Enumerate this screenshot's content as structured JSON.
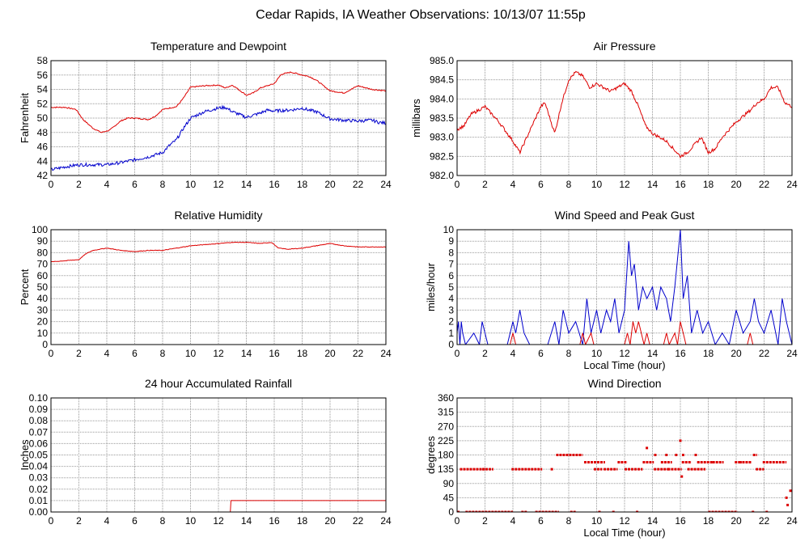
{
  "title": "Cedar Rapids, IA Weather Observations: 10/13/07 11:55p",
  "colors": {
    "red": "#dd0000",
    "blue": "#0000cc",
    "grid": "#999999"
  },
  "chart_data": [
    {
      "id": "temp",
      "type": "line",
      "title": "Temperature and Dewpoint",
      "xlabel": "",
      "ylabel": "Fahrenheit",
      "xlim": [
        0,
        24
      ],
      "xticks": [
        "0",
        "2",
        "4",
        "6",
        "8",
        "10",
        "12",
        "14",
        "16",
        "18",
        "20",
        "22",
        "24"
      ],
      "ylim": [
        42,
        58
      ],
      "yticks": [
        "42",
        "44",
        "46",
        "48",
        "50",
        "52",
        "54",
        "56",
        "58"
      ],
      "grid": true,
      "series": [
        {
          "color": "#dd0000",
          "noise": 0.08,
          "x": [
            0,
            1,
            1.8,
            2.3,
            3.0,
            3.6,
            4.2,
            5,
            5.5,
            6,
            7,
            7.5,
            8,
            9,
            9.5,
            10,
            11,
            12,
            12.5,
            13,
            14,
            14.5,
            15,
            15.5,
            16,
            16.5,
            17.2,
            18,
            18.5,
            19,
            20,
            21,
            22,
            23,
            24
          ],
          "y": [
            51.5,
            51.5,
            51.2,
            49.8,
            48.6,
            48.0,
            48.3,
            49.6,
            50.0,
            50.0,
            49.8,
            50.3,
            51.2,
            51.6,
            52.8,
            54.3,
            54.5,
            54.6,
            54.2,
            54.6,
            53.2,
            53.5,
            54.2,
            54.5,
            54.8,
            56.1,
            56.4,
            56.0,
            55.8,
            55.3,
            53.8,
            53.5,
            54.5,
            54.0,
            53.8
          ]
        },
        {
          "color": "#0000cc",
          "noise": 0.22,
          "x": [
            0,
            1,
            2,
            3,
            4,
            5,
            5.5,
            6,
            7,
            8,
            8.5,
            9,
            9.5,
            10,
            11,
            12,
            12.5,
            13,
            14,
            15,
            15.5,
            16,
            17,
            17.5,
            18,
            18.5,
            19,
            20,
            21,
            22,
            23,
            23.5,
            24
          ],
          "y": [
            42.8,
            43.2,
            43.5,
            43.5,
            43.5,
            43.8,
            44.0,
            44.2,
            44.6,
            45.2,
            46.2,
            47.0,
            48.6,
            50.0,
            50.9,
            51.4,
            51.5,
            50.9,
            50.1,
            50.7,
            51.1,
            51.0,
            51.1,
            51.2,
            51.4,
            51.1,
            50.9,
            49.9,
            49.7,
            49.6,
            49.7,
            49.4,
            49.3
          ]
        }
      ]
    },
    {
      "id": "pres",
      "type": "line",
      "title": "Air Pressure",
      "xlabel": "",
      "ylabel": "millibars",
      "xlim": [
        0,
        24
      ],
      "xticks": [
        "0",
        "2",
        "4",
        "6",
        "8",
        "10",
        "12",
        "14",
        "16",
        "18",
        "20",
        "22",
        "24"
      ],
      "ylim": [
        982.0,
        985.0
      ],
      "yticks": [
        "982.0",
        "982.5",
        "983.0",
        "983.5",
        "984.0",
        "984.5",
        "985.0"
      ],
      "grid": true,
      "series": [
        {
          "color": "#dd0000",
          "noise": 0.04,
          "x": [
            0,
            0.5,
            1,
            1.5,
            2,
            3,
            4,
            4.5,
            5,
            6,
            6.3,
            7,
            7.5,
            8,
            8.5,
            9,
            9.5,
            10,
            10.5,
            11,
            11.5,
            12,
            12.5,
            13,
            13.5,
            14,
            15,
            16,
            16.5,
            17,
            17.5,
            18,
            18.5,
            19,
            20,
            21,
            21.5,
            22,
            22.5,
            23,
            23.5,
            24
          ],
          "y": [
            983.2,
            983.3,
            983.6,
            983.7,
            983.8,
            983.4,
            982.9,
            982.6,
            983.0,
            983.8,
            983.9,
            983.1,
            983.9,
            984.5,
            984.7,
            984.6,
            984.3,
            984.4,
            984.3,
            984.2,
            984.3,
            984.4,
            984.2,
            983.8,
            983.3,
            983.1,
            982.9,
            982.5,
            982.6,
            982.8,
            983.0,
            982.6,
            982.7,
            983.0,
            983.4,
            983.7,
            983.9,
            984.0,
            984.3,
            984.3,
            983.9,
            983.8
          ]
        }
      ]
    },
    {
      "id": "rh",
      "type": "line",
      "title": "Relative Humidity",
      "xlabel": "",
      "ylabel": "Percent",
      "xlim": [
        0,
        24
      ],
      "xticks": [
        "0",
        "2",
        "4",
        "6",
        "8",
        "10",
        "12",
        "14",
        "16",
        "18",
        "20",
        "22",
        "24"
      ],
      "ylim": [
        0,
        100
      ],
      "yticks": [
        "0",
        "10",
        "20",
        "30",
        "40",
        "50",
        "60",
        "70",
        "80",
        "90",
        "100"
      ],
      "grid": true,
      "series": [
        {
          "color": "#dd0000",
          "noise": 0.25,
          "x": [
            0,
            1,
            2,
            2.5,
            3,
            4,
            5,
            6,
            7,
            8,
            9,
            10,
            11,
            12,
            13,
            14,
            15,
            15.8,
            16.3,
            17,
            18,
            19,
            20,
            21,
            22,
            23,
            24
          ],
          "y": [
            72,
            73,
            74,
            79,
            82,
            84,
            82,
            81,
            82,
            82,
            84,
            86,
            87,
            88,
            89,
            89,
            88,
            89,
            84,
            83,
            84,
            86,
            88,
            86,
            85,
            85,
            85
          ]
        }
      ]
    },
    {
      "id": "wind",
      "type": "line",
      "title": "Wind Speed and Peak Gust",
      "xlabel": "Local Time (hour)",
      "ylabel": "miles/hour",
      "xlim": [
        0,
        24
      ],
      "xticks": [
        "0",
        "2",
        "4",
        "6",
        "8",
        "10",
        "12",
        "14",
        "16",
        "18",
        "20",
        "22",
        "24"
      ],
      "ylim": [
        0,
        10
      ],
      "yticks": [
        "0",
        "1",
        "2",
        "3",
        "4",
        "5",
        "6",
        "7",
        "8",
        "9",
        "10"
      ],
      "grid": true,
      "series": [
        {
          "color": "#0000cc",
          "noise": 0,
          "x": [
            0,
            0.1,
            0.2,
            0.3,
            0.4,
            0.6,
            1.2,
            1.6,
            1.8,
            2.0,
            2.2,
            3.6,
            4.0,
            4.2,
            4.5,
            4.8,
            5.2,
            6.5,
            7.0,
            7.3,
            7.6,
            8.0,
            8.5,
            9.0,
            9.3,
            9.6,
            10.0,
            10.3,
            10.7,
            11.0,
            11.3,
            11.6,
            12.0,
            12.3,
            12.5,
            12.7,
            13.0,
            13.3,
            13.6,
            14.0,
            14.3,
            14.6,
            15.0,
            15.3,
            15.6,
            16.0,
            16.2,
            16.5,
            16.8,
            17.2,
            17.6,
            18.0,
            18.5,
            19.0,
            19.5,
            20.0,
            20.5,
            21.0,
            21.3,
            21.6,
            22.0,
            22.5,
            23.0,
            23.3,
            23.6,
            24.0
          ],
          "y": [
            1,
            2,
            0,
            2,
            1,
            0,
            1,
            0,
            2,
            1,
            0,
            0,
            2,
            1,
            3,
            1,
            0,
            0,
            2,
            0,
            3,
            1,
            2,
            0,
            4,
            1,
            3,
            1,
            3,
            2,
            4,
            1,
            3,
            9,
            6,
            7,
            3,
            5,
            4,
            5,
            3,
            5,
            4,
            2,
            5,
            10,
            4,
            6,
            1,
            3,
            1,
            2,
            0,
            1,
            0,
            3,
            1,
            2,
            4,
            2,
            1,
            3,
            0,
            4,
            2,
            0
          ]
        },
        {
          "color": "#dd0000",
          "noise": 0,
          "x": [
            0,
            3.8,
            4.0,
            4.2,
            8.8,
            9.0,
            9.2,
            9.6,
            9.8,
            10.0,
            12.0,
            12.2,
            12.4,
            12.6,
            12.8,
            13.0,
            13.4,
            13.6,
            13.8,
            14.0,
            14.8,
            15.0,
            15.2,
            15.6,
            15.8,
            16.0,
            16.2,
            16.4,
            20.8,
            21.0,
            21.2,
            23.8,
            24.0
          ],
          "y": [
            0,
            0,
            1,
            0,
            0,
            1,
            0,
            1,
            0,
            0,
            0,
            1,
            0,
            2,
            1,
            2,
            0,
            1,
            0,
            0,
            0,
            1,
            0,
            1,
            0,
            2,
            1,
            0,
            0,
            1,
            0,
            0,
            0
          ]
        }
      ]
    },
    {
      "id": "rain",
      "type": "line",
      "title": "24 hour Accumulated Rainfall",
      "xlabel": "",
      "ylabel": "Inches",
      "xlim": [
        0,
        24
      ],
      "xticks": [
        "0",
        "2",
        "4",
        "6",
        "8",
        "10",
        "12",
        "14",
        "16",
        "18",
        "20",
        "22",
        "24"
      ],
      "ylim": [
        0,
        0.1
      ],
      "yticks": [
        "0.00",
        "0.01",
        "0.02",
        "0.03",
        "0.04",
        "0.05",
        "0.06",
        "0.07",
        "0.08",
        "0.09",
        "0.10"
      ],
      "grid": true,
      "series": [
        {
          "color": "#dd0000",
          "noise": 0,
          "x": [
            0,
            12.85,
            12.9,
            24
          ],
          "y": [
            0,
            0,
            0.01,
            0.01
          ]
        }
      ]
    },
    {
      "id": "dir",
      "type": "scatter",
      "title": "Wind Direction",
      "xlabel": "Local Time (hour)",
      "ylabel": "degrees",
      "xlim": [
        0,
        24
      ],
      "xticks": [
        "0",
        "2",
        "4",
        "6",
        "8",
        "10",
        "12",
        "14",
        "16",
        "18",
        "20",
        "22",
        "24"
      ],
      "ylim": [
        0,
        360
      ],
      "yticks": [
        "0",
        "45",
        "90",
        "135",
        "180",
        "225",
        "270",
        "315",
        "360"
      ],
      "grid": true,
      "series": [
        {
          "color": "#dd0000",
          "segments": [
            [
              0,
              0.2,
              0
            ],
            [
              0.2,
              2.0,
              135
            ],
            [
              0.6,
              4.0,
              0
            ],
            [
              1.8,
              2.6,
              135
            ],
            [
              3.9,
              6.1,
              135
            ],
            [
              4.6,
              5.0,
              0
            ],
            [
              5.6,
              7.3,
              0
            ],
            [
              6.7,
              6.9,
              135
            ],
            [
              7.1,
              9.0,
              180
            ],
            [
              8.1,
              8.5,
              0
            ],
            [
              9.1,
              10.6,
              157
            ],
            [
              9.8,
              10.4,
              135
            ],
            [
              10.5,
              11.5,
              135
            ],
            [
              11.5,
              12.2,
              157
            ],
            [
              12.0,
              13.3,
              135
            ],
            [
              13.3,
              14.1,
              157
            ],
            [
              14.1,
              15.2,
              135
            ],
            [
              14.6,
              15.4,
              157
            ],
            [
              15.1,
              16.1,
              135
            ],
            [
              16.1,
              16.8,
              157
            ],
            [
              16.5,
              17.8,
              135
            ],
            [
              17.2,
              18.4,
              157
            ],
            [
              18.0,
              20.1,
              0
            ],
            [
              18.3,
              19.1,
              157
            ],
            [
              19.9,
              20.4,
              157
            ],
            [
              20.2,
              21.1,
              157
            ],
            [
              21.2,
              21.5,
              180
            ],
            [
              21.4,
              22.0,
              135
            ],
            [
              21.9,
              23.6,
              157
            ],
            [
              22.1,
              22.3,
              0
            ],
            [
              23.6,
              23.8,
              22
            ],
            [
              23.8,
              24.0,
              67
            ]
          ],
          "points": [
            [
              13.6,
              202
            ],
            [
              14.2,
              180
            ],
            [
              15.0,
              180
            ],
            [
              15.7,
              180
            ],
            [
              16.0,
              225
            ],
            [
              16.1,
              112
            ],
            [
              16.2,
              180
            ],
            [
              17.1,
              180
            ],
            [
              11.2,
              0
            ],
            [
              10.2,
              0
            ],
            [
              12.9,
              0
            ],
            [
              23.6,
              45
            ],
            [
              21.2,
              0
            ]
          ]
        }
      ]
    }
  ]
}
